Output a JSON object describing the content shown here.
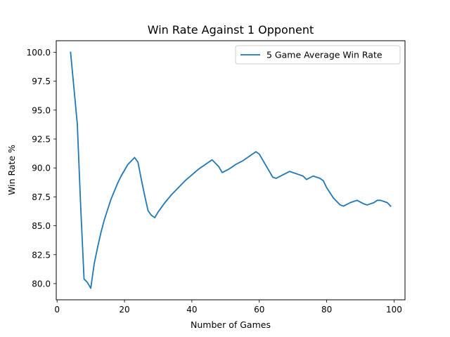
{
  "chart_data": {
    "type": "line",
    "title": "Win Rate Against 1 Opponent",
    "xlabel": "Number of Games",
    "ylabel": "Win Rate %",
    "xlim": [
      -0.25,
      103.25
    ],
    "ylim": [
      78.6,
      101.0
    ],
    "xticks": [
      0,
      20,
      40,
      60,
      80,
      100
    ],
    "yticks": [
      80.0,
      82.5,
      85.0,
      87.5,
      90.0,
      92.5,
      95.0,
      97.5,
      100.0
    ],
    "xtick_labels": [
      "0",
      "20",
      "40",
      "60",
      "80",
      "100"
    ],
    "ytick_labels": [
      "80.0",
      "82.5",
      "85.0",
      "87.5",
      "90.0",
      "92.5",
      "95.0",
      "97.5",
      "100.0"
    ],
    "grid": false,
    "legend_position": "top-right",
    "series": [
      {
        "name": "5 Game Average Win Rate",
        "color": "#1f77b4",
        "x": [
          4,
          5,
          6,
          7,
          8,
          9,
          10,
          11,
          12,
          13,
          14,
          15,
          16,
          17,
          18,
          19,
          20,
          21,
          22,
          23,
          24,
          25,
          26,
          27,
          28,
          29,
          30,
          32,
          34,
          36,
          38,
          40,
          42,
          44,
          46,
          48,
          49,
          51,
          53,
          55,
          57,
          59,
          60,
          62,
          64,
          65,
          67,
          69,
          71,
          73,
          74,
          76,
          78,
          79,
          80,
          82,
          84,
          85,
          87,
          89,
          91,
          92,
          94,
          95,
          96,
          98,
          99
        ],
        "y": [
          100.0,
          96.9,
          93.8,
          86.7,
          80.4,
          80.1,
          79.6,
          81.7,
          83.1,
          84.4,
          85.5,
          86.4,
          87.3,
          88.0,
          88.7,
          89.3,
          89.8,
          90.3,
          90.6,
          90.9,
          90.5,
          89.0,
          87.6,
          86.3,
          85.9,
          85.7,
          86.2,
          87.0,
          87.7,
          88.3,
          88.9,
          89.4,
          89.9,
          90.3,
          90.7,
          90.1,
          89.6,
          89.9,
          90.3,
          90.6,
          91.0,
          91.4,
          91.2,
          90.2,
          89.2,
          89.1,
          89.4,
          89.7,
          89.5,
          89.3,
          89.0,
          89.3,
          89.1,
          88.9,
          88.3,
          87.4,
          86.8,
          86.7,
          87.0,
          87.2,
          86.9,
          86.8,
          87.0,
          87.2,
          87.2,
          87.0,
          86.7
        ]
      }
    ]
  }
}
